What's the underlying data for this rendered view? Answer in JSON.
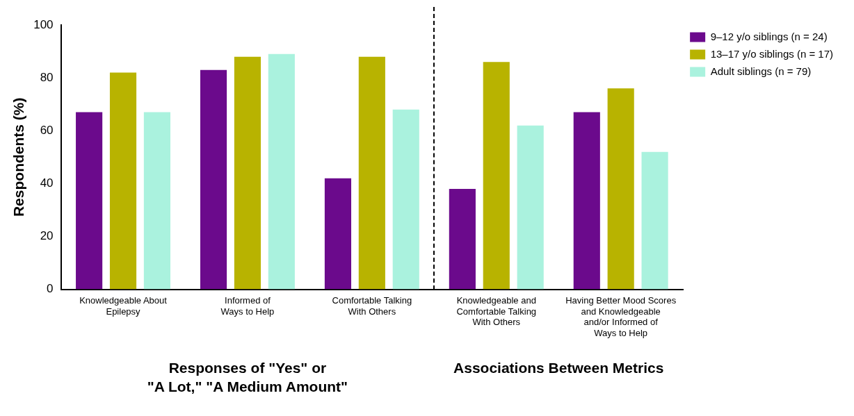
{
  "chart_data": {
    "type": "bar",
    "ylabel": "Respondents (%)",
    "categories": [
      "Knowledgeable About\nEpilepsy",
      "Informed of\nWays to Help",
      "Comfortable Talking\nWith Others",
      "Knowledgeable and\nComfortable Talking\nWith Others",
      "Having Better Mood Scores\nand Knowledgeable\nand/or Informed of\nWays to Help"
    ],
    "series": [
      {
        "name": "9–12 y/o siblings (n = 24)",
        "color": "#6b0a8c",
        "values": [
          67,
          83,
          42,
          38,
          67
        ]
      },
      {
        "name": "13–17 y/o siblings (n = 17)",
        "color": "#b8b300",
        "values": [
          82,
          88,
          88,
          86,
          76
        ]
      },
      {
        "name": "Adult siblings (n = 79)",
        "color": "#aaf2de",
        "values": [
          67,
          89,
          68,
          62,
          52
        ]
      }
    ],
    "ylim": [
      0,
      100
    ],
    "yticks": [
      0,
      20,
      40,
      60,
      80,
      100
    ],
    "grid": false,
    "legend": "top right",
    "annotations": [
      "Responses of \"Yes\" or\n\"A Lot,\" \"A Medium Amount\"",
      "Associations Between Metrics"
    ]
  }
}
